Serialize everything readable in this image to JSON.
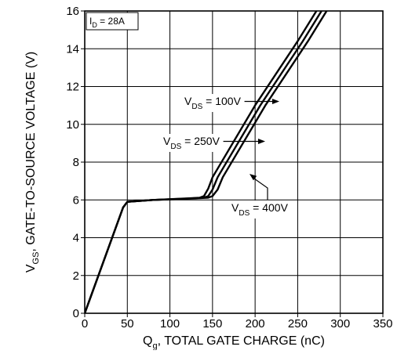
{
  "chart_data": {
    "type": "line",
    "title": "",
    "xlabel": {
      "main": "Q",
      "sub": "g",
      "rest": ", TOTAL GATE CHARGE (nC)"
    },
    "ylabel": {
      "main": "V",
      "sub": "GS",
      "rest": ", GATE-TO-SOURCE  VOLTAGE (V)"
    },
    "xlim": [
      0,
      350
    ],
    "ylim": [
      0,
      16
    ],
    "x_ticks": [
      0,
      50,
      100,
      150,
      200,
      250,
      300,
      350
    ],
    "y_ticks": [
      0,
      2,
      4,
      6,
      8,
      10,
      12,
      14,
      16
    ],
    "grid": true,
    "condition_label": {
      "main": "I",
      "sub": "D",
      "rest": " = 28A"
    },
    "series": [
      {
        "name": "V_DS = 100V",
        "label": {
          "main": "V",
          "sub": "DS",
          "rest": " = 100V"
        },
        "points": [
          [
            0,
            0
          ],
          [
            45,
            5.6
          ],
          [
            50,
            5.9
          ],
          [
            80,
            6.0
          ],
          [
            120,
            6.08
          ],
          [
            135,
            6.12
          ],
          [
            140,
            6.2
          ],
          [
            145,
            6.6
          ],
          [
            150,
            7.2
          ],
          [
            200,
            11.0
          ],
          [
            250,
            14.4
          ],
          [
            272,
            16.0
          ]
        ]
      },
      {
        "name": "V_DS = 250V",
        "label": {
          "main": "V",
          "sub": "DS",
          "rest": " = 250V"
        },
        "points": [
          [
            0,
            0
          ],
          [
            45,
            5.6
          ],
          [
            50,
            5.9
          ],
          [
            80,
            6.0
          ],
          [
            120,
            6.07
          ],
          [
            140,
            6.12
          ],
          [
            145,
            6.2
          ],
          [
            150,
            6.55
          ],
          [
            156,
            7.2
          ],
          [
            206,
            11.0
          ],
          [
            256,
            14.4
          ],
          [
            278,
            16.0
          ]
        ]
      },
      {
        "name": "V_DS = 400V",
        "label": {
          "main": "V",
          "sub": "DS",
          "rest": " = 400V"
        },
        "points": [
          [
            0,
            0
          ],
          [
            45,
            5.6
          ],
          [
            50,
            5.9
          ],
          [
            80,
            6.0
          ],
          [
            120,
            6.06
          ],
          [
            145,
            6.12
          ],
          [
            150,
            6.2
          ],
          [
            156,
            6.55
          ],
          [
            162,
            7.2
          ],
          [
            212,
            11.0
          ],
          [
            262,
            14.4
          ],
          [
            284,
            16.0
          ]
        ]
      }
    ]
  }
}
